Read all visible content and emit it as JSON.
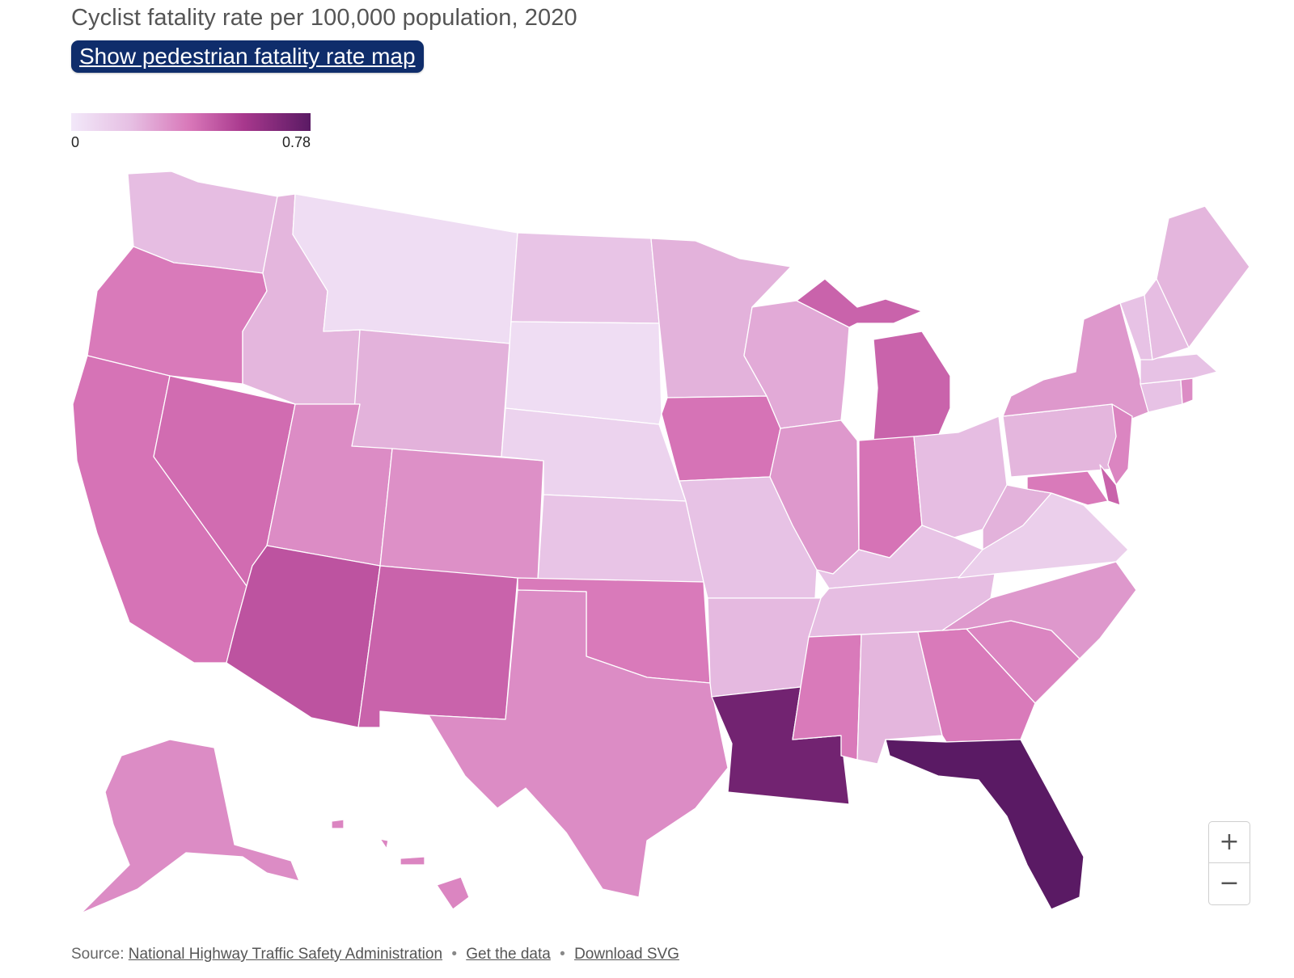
{
  "header": {
    "title": "Cyclist fatality rate per 100,000 population, 2020",
    "toggle_label": "Show pedestrian fatality rate map"
  },
  "legend": {
    "min_label": "0",
    "max_label": "0.78",
    "min_value": 0,
    "max_value": 0.78,
    "colors": [
      "#f2e8f9",
      "#e6bfe3",
      "#d876b8",
      "#a8388d",
      "#5a1a64"
    ]
  },
  "map": {
    "type": "choropleth",
    "measure": "cyclist fatality rate per 100,000 population",
    "year": 2020,
    "regions": [
      {
        "state": "Washington",
        "value": 0.2
      },
      {
        "state": "Oregon",
        "value": 0.38
      },
      {
        "state": "California",
        "value": 0.4
      },
      {
        "state": "Nevada",
        "value": 0.42
      },
      {
        "state": "Idaho",
        "value": 0.22
      },
      {
        "state": "Montana",
        "value": 0.05
      },
      {
        "state": "Wyoming",
        "value": 0.23
      },
      {
        "state": "Utah",
        "value": 0.33
      },
      {
        "state": "Arizona",
        "value": 0.5
      },
      {
        "state": "Colorado",
        "value": 0.32
      },
      {
        "state": "New Mexico",
        "value": 0.45
      },
      {
        "state": "North Dakota",
        "value": 0.17
      },
      {
        "state": "South Dakota",
        "value": 0.05
      },
      {
        "state": "Nebraska",
        "value": 0.1
      },
      {
        "state": "Kansas",
        "value": 0.17
      },
      {
        "state": "Oklahoma",
        "value": 0.38
      },
      {
        "state": "Texas",
        "value": 0.33
      },
      {
        "state": "Minnesota",
        "value": 0.23
      },
      {
        "state": "Iowa",
        "value": 0.4
      },
      {
        "state": "Missouri",
        "value": 0.18
      },
      {
        "state": "Arkansas",
        "value": 0.21
      },
      {
        "state": "Louisiana",
        "value": 0.72
      },
      {
        "state": "Wisconsin",
        "value": 0.25
      },
      {
        "state": "Illinois",
        "value": 0.3
      },
      {
        "state": "Michigan",
        "value": 0.45
      },
      {
        "state": "Indiana",
        "value": 0.4
      },
      {
        "state": "Ohio",
        "value": 0.2
      },
      {
        "state": "Kentucky",
        "value": 0.17
      },
      {
        "state": "Tennessee",
        "value": 0.2
      },
      {
        "state": "Mississippi",
        "value": 0.38
      },
      {
        "state": "Alabama",
        "value": 0.22
      },
      {
        "state": "Georgia",
        "value": 0.38
      },
      {
        "state": "Florida",
        "value": 0.78
      },
      {
        "state": "South Carolina",
        "value": 0.35
      },
      {
        "state": "North Carolina",
        "value": 0.3
      },
      {
        "state": "Virginia",
        "value": 0.12
      },
      {
        "state": "West Virginia",
        "value": 0.23
      },
      {
        "state": "Pennsylvania",
        "value": 0.22
      },
      {
        "state": "New York",
        "value": 0.3
      },
      {
        "state": "New Jersey",
        "value": 0.35
      },
      {
        "state": "Maryland",
        "value": 0.38
      },
      {
        "state": "Delaware",
        "value": 0.45
      },
      {
        "state": "Connecticut",
        "value": 0.18
      },
      {
        "state": "Rhode Island",
        "value": 0.33
      },
      {
        "state": "Massachusetts",
        "value": 0.18
      },
      {
        "state": "Vermont",
        "value": 0.18
      },
      {
        "state": "New Hampshire",
        "value": 0.2
      },
      {
        "state": "Maine",
        "value": 0.22
      },
      {
        "state": "Alaska",
        "value": 0.33
      },
      {
        "state": "Hawaii",
        "value": 0.35
      }
    ]
  },
  "zoom": {
    "in_label": "+",
    "out_label": "−"
  },
  "footer": {
    "source_prefix": "Source:",
    "source_link": "National Highway Traffic Safety Administration",
    "separator": "•",
    "data_link": "Get the data",
    "download_link": "Download SVG"
  }
}
